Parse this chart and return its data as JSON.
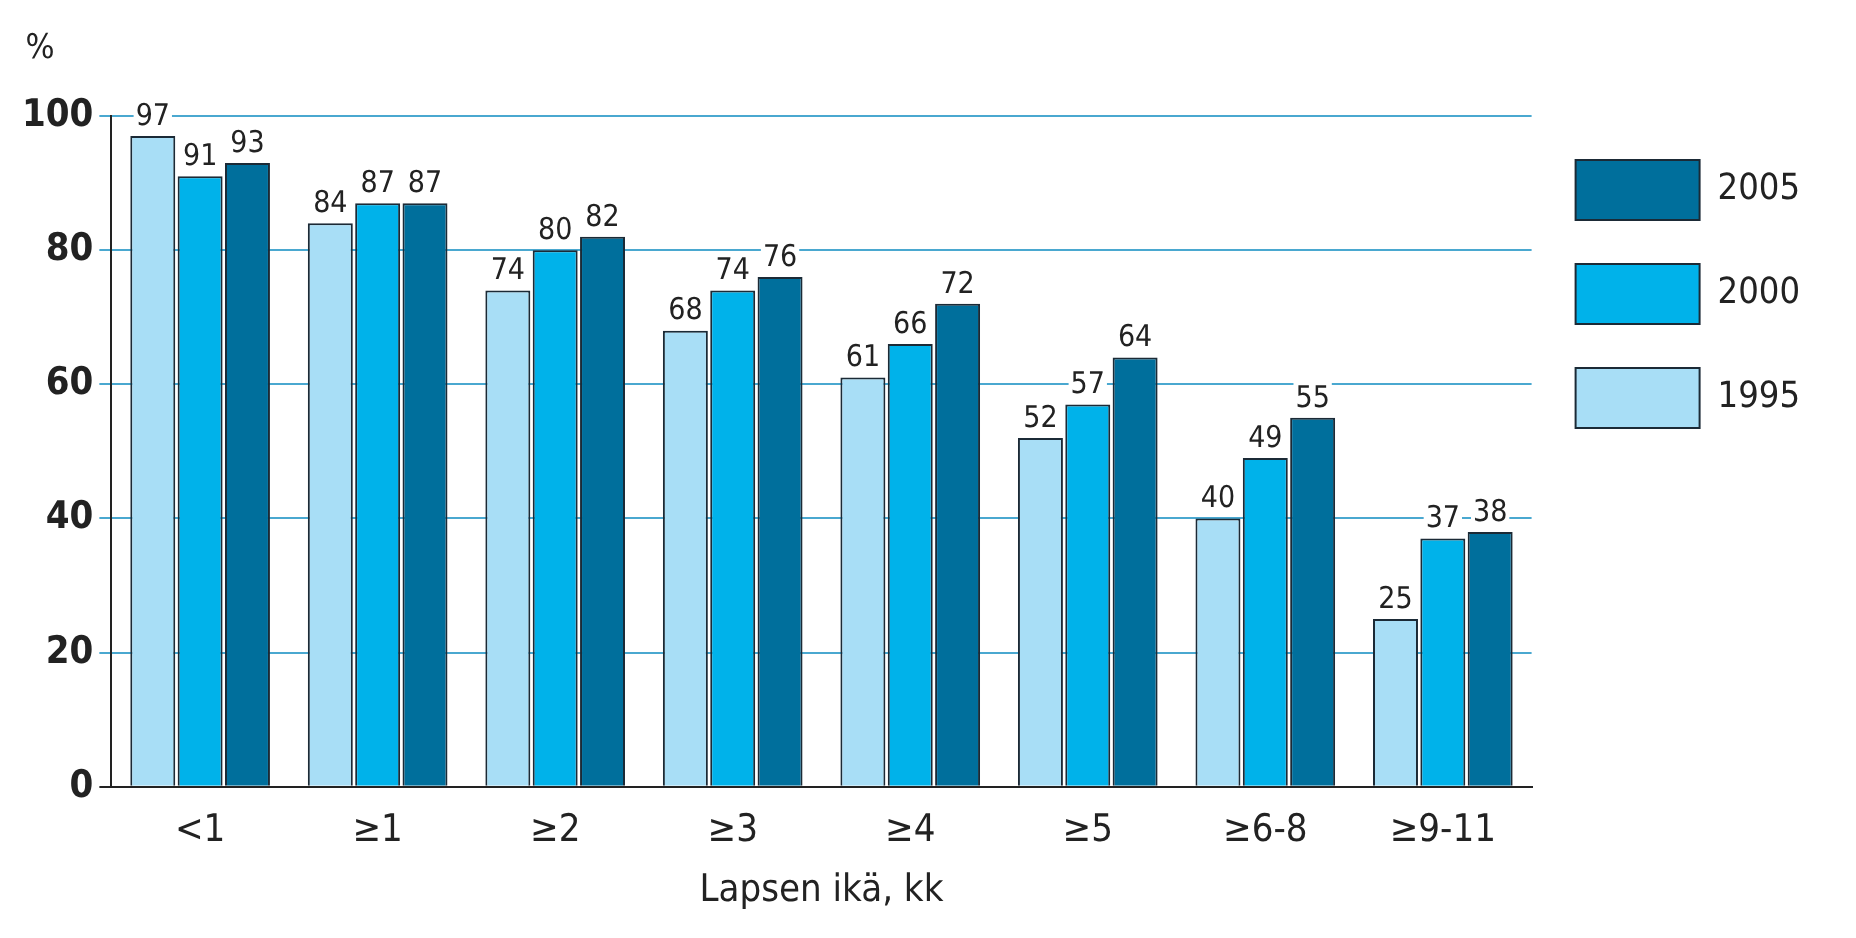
{
  "chart_data": {
    "type": "bar",
    "ylabel": "%",
    "xlabel": "Lapsen ikä, kk",
    "categories": [
      "<1",
      "≥1",
      "≥2",
      "≥3",
      "≥4",
      "≥5",
      "≥6-8",
      "≥9-11"
    ],
    "series": [
      {
        "name": "1995",
        "color": "#a8def6",
        "values": [
          97,
          84,
          74,
          68,
          61,
          52,
          40,
          25
        ]
      },
      {
        "name": "2000",
        "color": "#00b2ea",
        "values": [
          91,
          87,
          80,
          74,
          66,
          57,
          49,
          37
        ]
      },
      {
        "name": "2005",
        "color": "#006f9c",
        "values": [
          93,
          87,
          82,
          76,
          72,
          64,
          55,
          38
        ]
      }
    ],
    "ylim": [
      0,
      100
    ],
    "yticks": [
      0,
      20,
      40,
      60,
      80,
      100
    ],
    "grid": "y",
    "legend": "right",
    "data_labels": true
  }
}
